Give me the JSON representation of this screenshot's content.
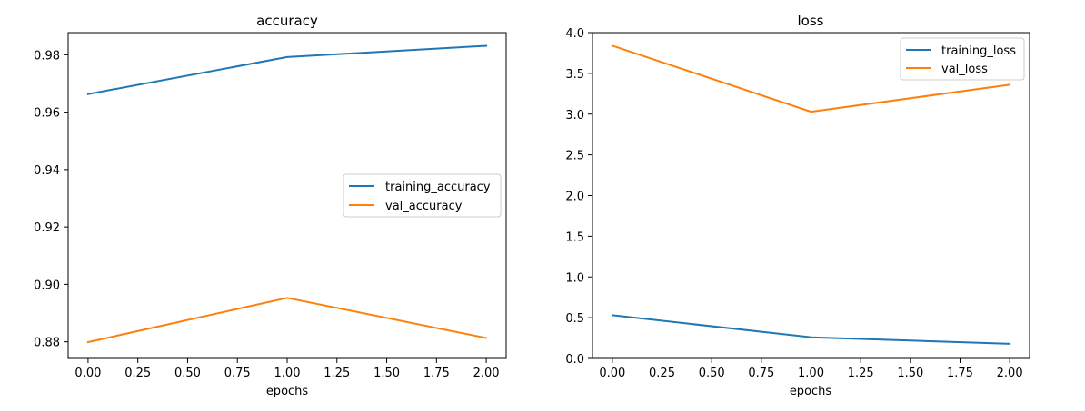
{
  "chart_data": [
    {
      "type": "line",
      "title": "accuracy",
      "xlabel": "epochs",
      "ylabel": "",
      "x": [
        0,
        1,
        2
      ],
      "xlim": [
        -0.1,
        2.1
      ],
      "ylim": [
        0.8742,
        0.9877
      ],
      "xticks": [
        0.0,
        0.25,
        0.5,
        0.75,
        1.0,
        1.25,
        1.5,
        1.75,
        2.0
      ],
      "xtick_labels": [
        "0.00",
        "0.25",
        "0.50",
        "0.75",
        "1.00",
        "1.25",
        "1.50",
        "1.75",
        "2.00"
      ],
      "yticks": [
        0.88,
        0.9,
        0.92,
        0.94,
        0.96,
        0.98
      ],
      "ytick_labels": [
        "0.88",
        "0.90",
        "0.92",
        "0.94",
        "0.96",
        "0.98"
      ],
      "legend_position": "center-right",
      "series": [
        {
          "name": "training_accuracy",
          "color": "#1f77b4",
          "values": [
            0.9663,
            0.9792,
            0.9831
          ]
        },
        {
          "name": "val_accuracy",
          "color": "#ff7f0e",
          "values": [
            0.8799,
            0.8953,
            0.8813
          ]
        }
      ]
    },
    {
      "type": "line",
      "title": "loss",
      "xlabel": "epochs",
      "ylabel": "",
      "x": [
        0,
        1,
        2
      ],
      "xlim": [
        -0.1,
        2.1
      ],
      "ylim": [
        0.0,
        4.0
      ],
      "xticks": [
        0.0,
        0.25,
        0.5,
        0.75,
        1.0,
        1.25,
        1.5,
        1.75,
        2.0
      ],
      "xtick_labels": [
        "0.00",
        "0.25",
        "0.50",
        "0.75",
        "1.00",
        "1.25",
        "1.50",
        "1.75",
        "2.00"
      ],
      "yticks": [
        0.0,
        0.5,
        1.0,
        1.5,
        2.0,
        2.5,
        3.0,
        3.5,
        4.0
      ],
      "ytick_labels": [
        "0.0",
        "0.5",
        "1.0",
        "1.5",
        "2.0",
        "2.5",
        "3.0",
        "3.5",
        "4.0"
      ],
      "legend_position": "top-right",
      "series": [
        {
          "name": "training_loss",
          "color": "#1f77b4",
          "values": [
            0.53,
            0.26,
            0.18
          ]
        },
        {
          "name": "val_loss",
          "color": "#ff7f0e",
          "values": [
            3.84,
            3.03,
            3.36
          ]
        }
      ]
    }
  ]
}
